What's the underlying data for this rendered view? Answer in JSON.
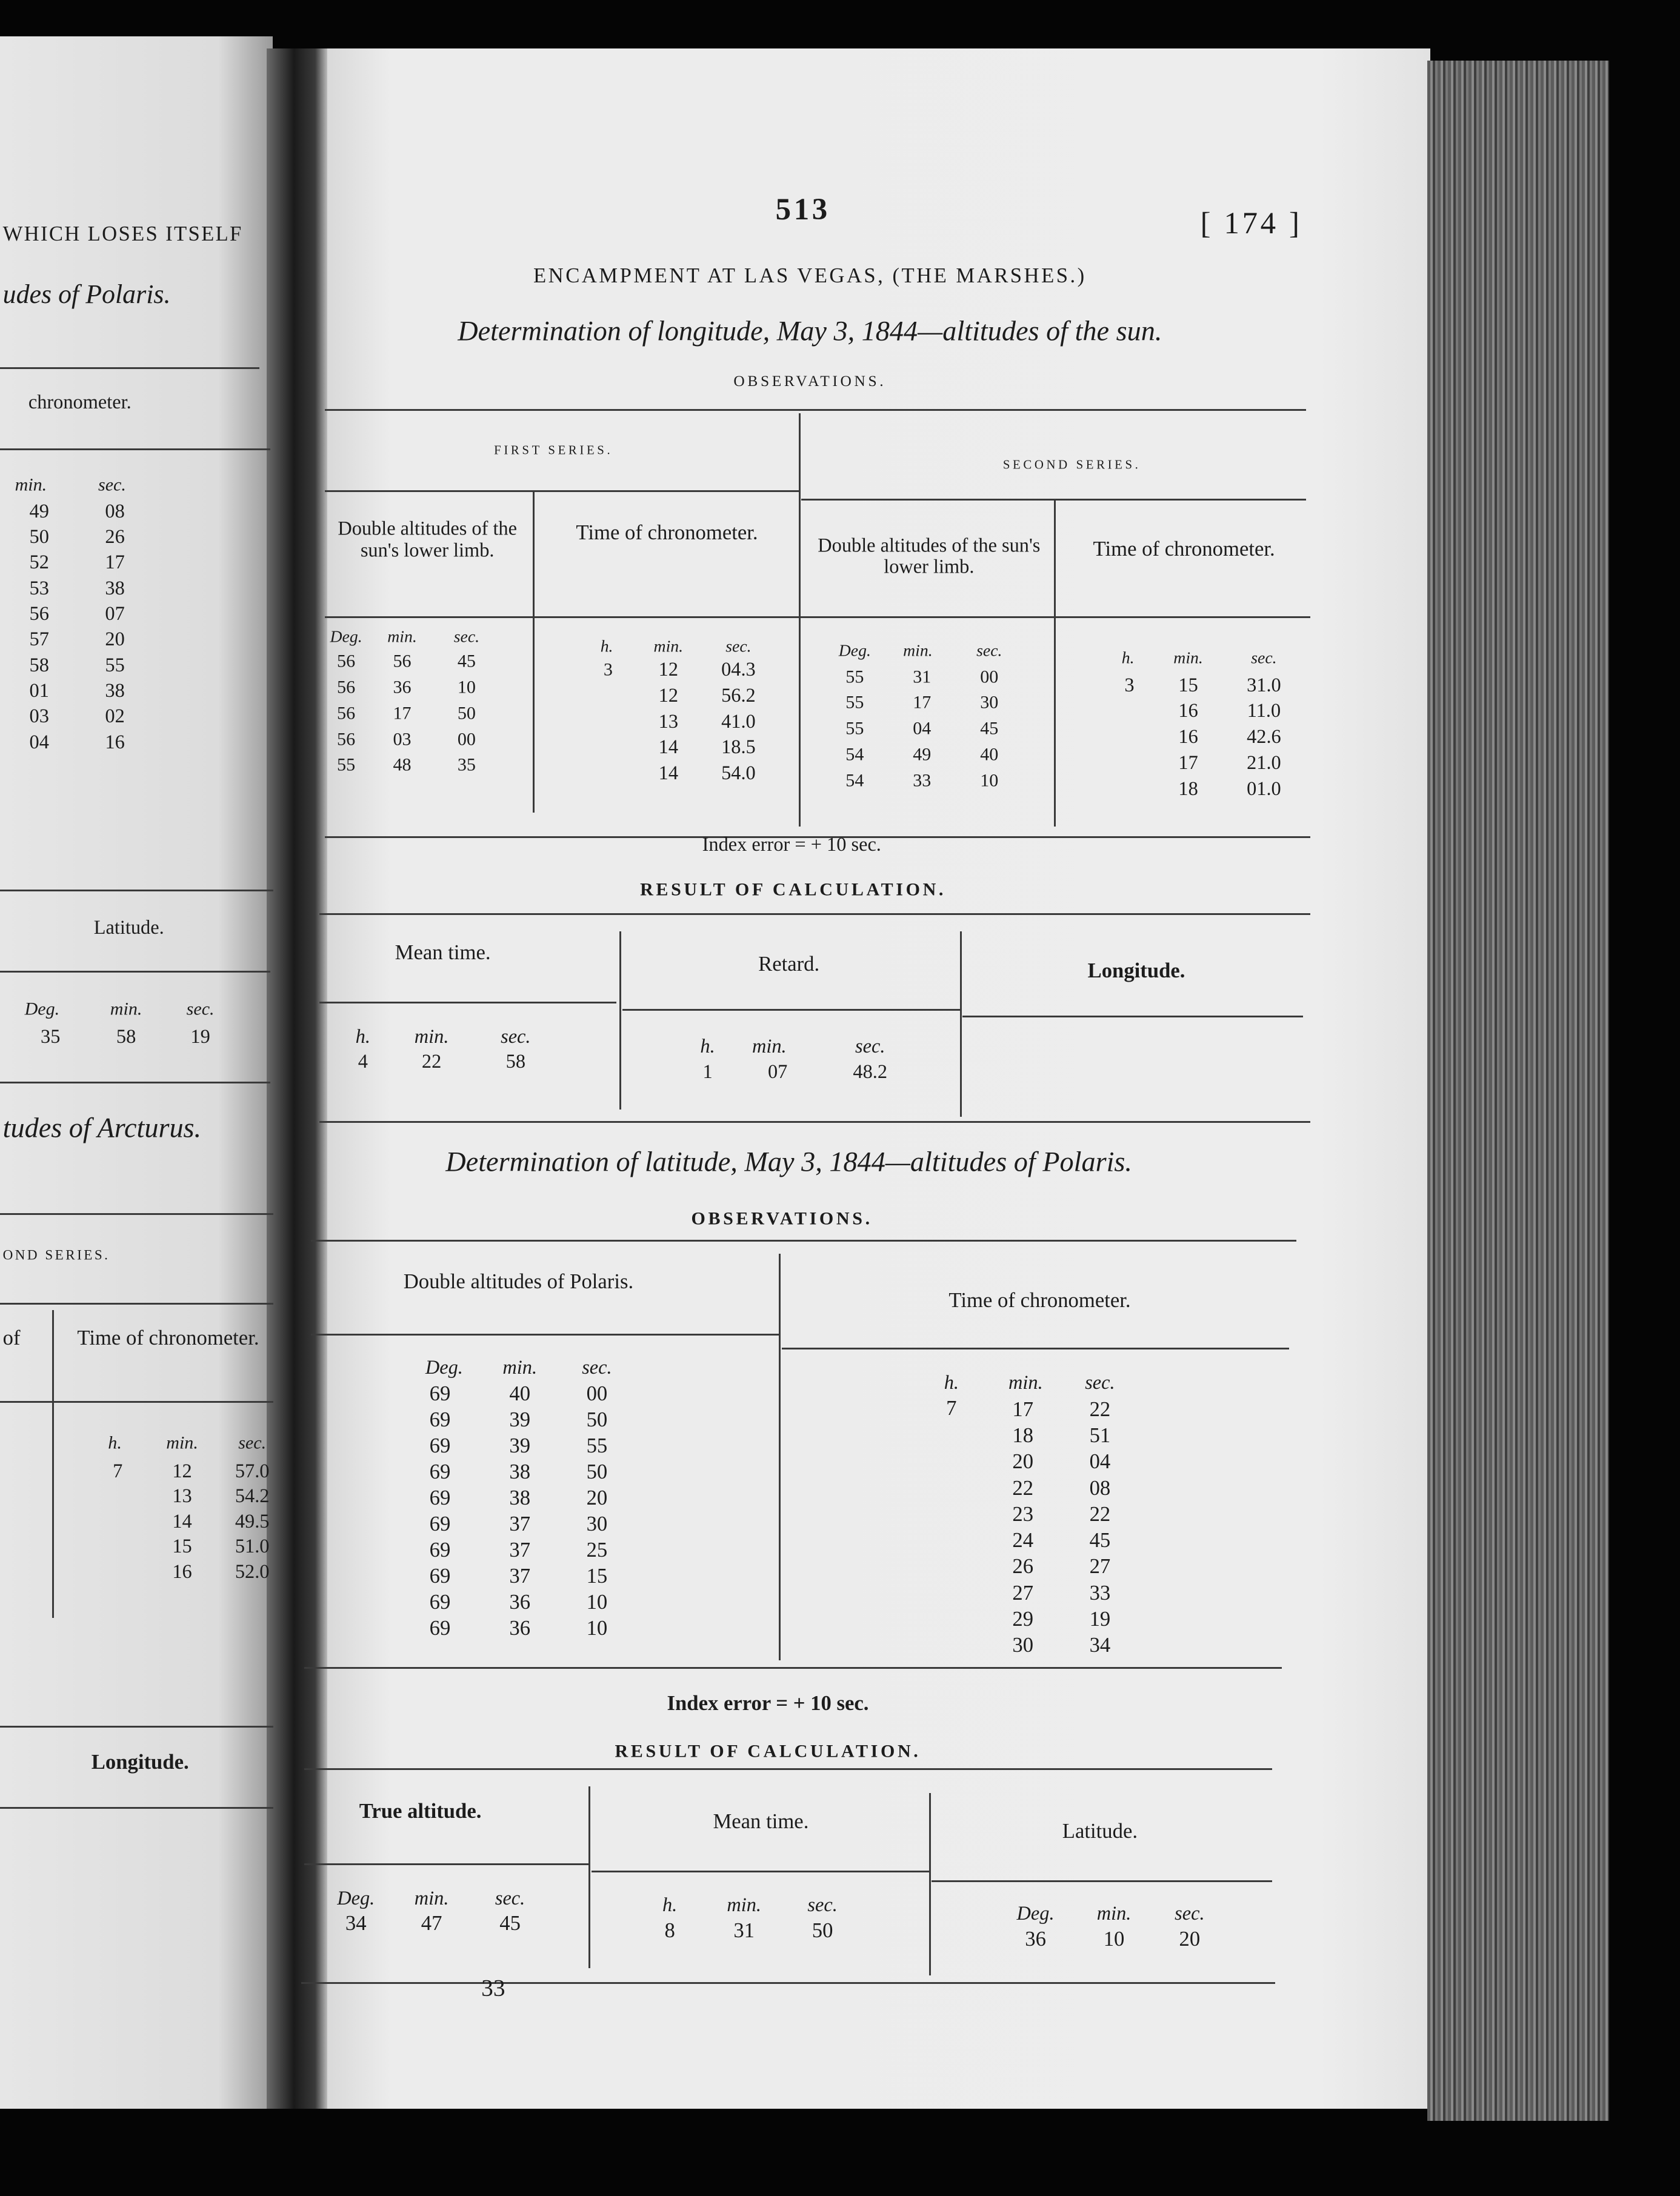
{
  "left_page": {
    "header_fragment": "WHICH LOSES ITSELF",
    "subtitle_fragment": "udes of Polaris.",
    "column_header": "chronometer.",
    "time_columns": [
      "min.",
      "sec."
    ],
    "times": [
      [
        "49",
        "08"
      ],
      [
        "50",
        "26"
      ],
      [
        "52",
        "17"
      ],
      [
        "53",
        "38"
      ],
      [
        "56",
        "07"
      ],
      [
        "57",
        "20"
      ],
      [
        "58",
        "55"
      ],
      [
        "01",
        "38"
      ],
      [
        "03",
        "02"
      ],
      [
        "04",
        "16"
      ]
    ],
    "latitude": {
      "label": "Latitude.",
      "columns": [
        "Deg.",
        "min.",
        "sec."
      ],
      "values": [
        "35",
        "58",
        "19"
      ]
    },
    "section_fragment": "tudes of Arcturus.",
    "series_fragment": "OND SERIES.",
    "first_col_fragment": "of",
    "chronometer_header": "Time of chronometer.",
    "chronometer_columns": [
      "h.",
      "min.",
      "sec."
    ],
    "chronometer_hour": "7",
    "chronometer": [
      [
        "12",
        "57.0"
      ],
      [
        "13",
        "54.2"
      ],
      [
        "14",
        "49.5"
      ],
      [
        "15",
        "51.0"
      ],
      [
        "16",
        "52.0"
      ]
    ],
    "longitude_label": "Longitude."
  },
  "page": {
    "number": "513",
    "doc_ref": "[ 174 ]",
    "heading": "ENCAMPMENT AT LAS VEGAS, (THE MARSHES.)",
    "section1": {
      "title": "Determination of longitude, May 3, 1844—altitudes of the sun.",
      "observations_label": "OBSERVATIONS.",
      "first_series": {
        "label": "FIRST SERIES.",
        "altitude_header": "Double altitudes of the sun's lower limb.",
        "altitude_columns": [
          "Deg.",
          "min.",
          "sec."
        ],
        "altitudes": [
          [
            "56",
            "56",
            "45"
          ],
          [
            "56",
            "36",
            "10"
          ],
          [
            "56",
            "17",
            "50"
          ],
          [
            "56",
            "03",
            "00"
          ],
          [
            "55",
            "48",
            "35"
          ]
        ],
        "time_header": "Time of chronometer.",
        "time_columns": [
          "h.",
          "min.",
          "sec."
        ],
        "hour": "3",
        "times": [
          [
            "12",
            "04.3"
          ],
          [
            "12",
            "56.2"
          ],
          [
            "13",
            "41.0"
          ],
          [
            "14",
            "18.5"
          ],
          [
            "14",
            "54.0"
          ]
        ]
      },
      "second_series": {
        "label": "SECOND SERIES.",
        "altitude_header": "Double altitudes of the sun's lower limb.",
        "altitude_columns": [
          "Deg.",
          "min.",
          "sec."
        ],
        "altitudes": [
          [
            "55",
            "31",
            "00"
          ],
          [
            "55",
            "17",
            "30"
          ],
          [
            "55",
            "04",
            "45"
          ],
          [
            "54",
            "49",
            "40"
          ],
          [
            "54",
            "33",
            "10"
          ]
        ],
        "time_header": "Time of chronometer.",
        "time_columns": [
          "h.",
          "min.",
          "sec."
        ],
        "hour": "3",
        "times": [
          [
            "15",
            "31.0"
          ],
          [
            "16",
            "11.0"
          ],
          [
            "16",
            "42.6"
          ],
          [
            "17",
            "21.0"
          ],
          [
            "18",
            "01.0"
          ]
        ]
      },
      "index_error": "Index error = + 10 sec.",
      "result_label": "RESULT OF CALCULATION.",
      "result": {
        "mean_time": {
          "label": "Mean time.",
          "columns": [
            "h.",
            "min.",
            "sec."
          ],
          "values": [
            "4",
            "22",
            "58"
          ]
        },
        "retard": {
          "label": "Retard.",
          "columns": [
            "h.",
            "min.",
            "sec."
          ],
          "values": [
            "1",
            "07",
            "48.2"
          ]
        },
        "longitude": {
          "label": "Longitude."
        }
      }
    },
    "section2": {
      "title": "Determination of latitude, May 3, 1844—altitudes of Polaris.",
      "observations_label": "OBSERVATIONS.",
      "altitude_header": "Double altitudes of Polaris.",
      "altitude_columns": [
        "Deg.",
        "min.",
        "sec."
      ],
      "altitudes": [
        [
          "69",
          "40",
          "00"
        ],
        [
          "69",
          "39",
          "50"
        ],
        [
          "69",
          "39",
          "55"
        ],
        [
          "69",
          "38",
          "50"
        ],
        [
          "69",
          "38",
          "20"
        ],
        [
          "69",
          "37",
          "30"
        ],
        [
          "69",
          "37",
          "25"
        ],
        [
          "69",
          "37",
          "15"
        ],
        [
          "69",
          "36",
          "10"
        ],
        [
          "69",
          "36",
          "10"
        ]
      ],
      "time_header": "Time of chronometer.",
      "time_columns": [
        "h.",
        "min.",
        "sec."
      ],
      "hour": "7",
      "times": [
        [
          "17",
          "22"
        ],
        [
          "18",
          "51"
        ],
        [
          "20",
          "04"
        ],
        [
          "22",
          "08"
        ],
        [
          "23",
          "22"
        ],
        [
          "24",
          "45"
        ],
        [
          "26",
          "27"
        ],
        [
          "27",
          "33"
        ],
        [
          "29",
          "19"
        ],
        [
          "30",
          "34"
        ]
      ],
      "index_error": "Index error = + 10 sec.",
      "result_label": "RESULT OF CALCULATION.",
      "result": {
        "true_altitude": {
          "label": "True altitude.",
          "columns": [
            "Deg.",
            "min.",
            "sec."
          ],
          "values": [
            "34",
            "47",
            "45"
          ]
        },
        "mean_time": {
          "label": "Mean time.",
          "columns": [
            "h.",
            "min.",
            "sec."
          ],
          "values": [
            "8",
            "31",
            "50"
          ]
        },
        "latitude": {
          "label": "Latitude.",
          "columns": [
            "Deg.",
            "min.",
            "sec."
          ],
          "values": [
            "36",
            "10",
            "20"
          ]
        }
      }
    },
    "footer_signature": "33"
  }
}
